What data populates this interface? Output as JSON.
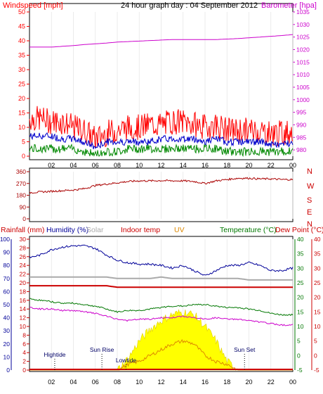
{
  "header": {
    "title": "24 hour graph day : 04 September 2012",
    "left_label": "Windspeed [mph]",
    "right_label": "Barometer [hpa]"
  },
  "colors": {
    "wind_gust": "#ff0000",
    "wind_avg": "#0000cc",
    "wind_low": "#008800",
    "barometer": "#cc00cc",
    "direction": "#aa0000",
    "rainfall": "#cc0000",
    "humidity": "#000099",
    "solar": "#aaaaaa",
    "indoor_temp": "#cc0000",
    "uv": "#dd8800",
    "temperature": "#007700",
    "dew_point": "#cc0000",
    "solar_fill": "#ffff00"
  },
  "x_ticks": [
    "02",
    "04",
    "06",
    "08",
    "10",
    "12",
    "14",
    "16",
    "18",
    "20",
    "22",
    "00"
  ],
  "panel_wind": {
    "left_ticks": [
      "0",
      "5",
      "10",
      "15",
      "20",
      "25",
      "30",
      "35",
      "40",
      "45",
      "50"
    ],
    "right_ticks": [
      "980",
      "985",
      "990",
      "995",
      "1000",
      "1005",
      "1010",
      "1015",
      "1020",
      "1025",
      "1030",
      "1035"
    ]
  },
  "panel_dir": {
    "left_ticks": [
      "0",
      "90",
      "180",
      "270",
      "360"
    ],
    "compass": [
      "N",
      "W",
      "S",
      "E",
      "N"
    ]
  },
  "panel_bottom": {
    "labels": {
      "rainfall": "Rainfall (mm)",
      "humidity": "Humidity (%)",
      "solar": "Solar",
      "indoor": "Indoor temp",
      "uv": "UV",
      "temperature": "Temperature (°C)",
      "dewpoint": "Dew Point (°C)"
    },
    "rain_ticks": [
      "0",
      "2",
      "4",
      "6",
      "8",
      "10",
      "12",
      "14",
      "16",
      "18",
      "20",
      "22",
      "24",
      "26",
      "28",
      "30"
    ],
    "hum_ticks": [
      "0",
      "10",
      "20",
      "30",
      "40",
      "50",
      "60",
      "70",
      "80",
      "90",
      "100"
    ],
    "temp_ticks_outer": [
      "-5",
      "0",
      "5",
      "10",
      "15",
      "20",
      "25",
      "30",
      "35",
      "40"
    ],
    "temp_ticks_inner": [
      "-5",
      "0",
      "5",
      "10",
      "15",
      "20",
      "25",
      "30",
      "35",
      "40"
    ],
    "events": {
      "hightide": "Hightide",
      "sunrise": "Sun Rise",
      "lowtide": "Lowtide",
      "sunset": "Sun Set"
    }
  },
  "chart_data": [
    {
      "type": "line",
      "title": "24 hour graph day : 04 September 2012",
      "ylabel": "Windspeed [mph]",
      "y2label": "Barometer [hpa]",
      "x_hours": [
        0,
        1,
        2,
        3,
        4,
        5,
        6,
        7,
        8,
        9,
        10,
        11,
        12,
        13,
        14,
        15,
        16,
        17,
        18,
        19,
        20,
        21,
        22,
        23,
        24
      ],
      "ylim": [
        0,
        50
      ],
      "y2lim": [
        977.5,
        1035
      ],
      "series": [
        {
          "name": "Windspeed",
          "axis": "y",
          "values": [
            13,
            13,
            12,
            12,
            10,
            9,
            6,
            8,
            9,
            10,
            10,
            11,
            11,
            12,
            12,
            11,
            10,
            11,
            9,
            9,
            9,
            9,
            8,
            8,
            9
          ]
        },
        {
          "name": "avg",
          "axis": "y",
          "values": [
            7,
            7,
            7,
            6,
            6,
            5,
            3,
            5,
            5,
            5,
            5,
            5,
            6,
            6,
            6,
            6,
            5,
            6,
            5,
            5,
            5,
            5,
            4,
            4,
            5
          ]
        },
        {
          "name": "low",
          "axis": "y",
          "values": [
            2,
            2,
            2,
            2,
            2,
            1,
            0,
            1,
            1,
            2,
            2,
            2,
            2,
            2,
            2,
            2,
            2,
            2,
            1,
            1,
            1,
            1,
            1,
            1,
            1
          ]
        },
        {
          "name": "Barometer",
          "axis": "y2",
          "values": [
            1021,
            1021,
            1021,
            1021.3,
            1021.6,
            1022,
            1022.3,
            1022.6,
            1023,
            1023.2,
            1023.4,
            1023.6,
            1023.8,
            1024,
            1024,
            1024,
            1024,
            1024,
            1024.2,
            1024.4,
            1024.7,
            1025,
            1025.3,
            1025.6,
            1026
          ]
        }
      ]
    },
    {
      "type": "line",
      "title": "",
      "ylabel": "",
      "x_hours": [
        0,
        1,
        2,
        3,
        4,
        5,
        6,
        7,
        8,
        9,
        10,
        11,
        12,
        13,
        14,
        15,
        16,
        17,
        18,
        19,
        20,
        21,
        22,
        23,
        24
      ],
      "ylim": [
        0,
        360
      ],
      "series": [
        {
          "name": "Wind direction",
          "values": [
            200,
            205,
            210,
            215,
            220,
            230,
            255,
            265,
            275,
            285,
            290,
            290,
            292,
            290,
            290,
            285,
            270,
            290,
            300,
            310,
            310,
            305,
            305,
            300,
            300
          ]
        }
      ]
    },
    {
      "type": "line",
      "title": "",
      "x_hours": [
        0,
        1,
        2,
        3,
        4,
        5,
        6,
        7,
        8,
        9,
        10,
        11,
        12,
        13,
        14,
        15,
        16,
        17,
        18,
        19,
        20,
        21,
        22,
        23,
        24
      ],
      "rain_lim": [
        0,
        30
      ],
      "humidity_lim": [
        0,
        100
      ],
      "temp_lim": [
        -5,
        40
      ],
      "series": [
        {
          "name": "Rainfall (mm)",
          "axis": "rain",
          "values": [
            0,
            0,
            0,
            0,
            0,
            0,
            0,
            0,
            0,
            0,
            0,
            0,
            0,
            0,
            0,
            0,
            0,
            0,
            0,
            0,
            0,
            0,
            0,
            0,
            0
          ]
        },
        {
          "name": "Humidity (%)",
          "axis": "humidity",
          "values": [
            86,
            88,
            92,
            94,
            95,
            95,
            93,
            88,
            84,
            82,
            81,
            81,
            80,
            78,
            80,
            76,
            72,
            76,
            80,
            80,
            82,
            80,
            76,
            76,
            78
          ]
        },
        {
          "name": "Solar",
          "axis": "temp",
          "values": [
            27,
            27,
            27,
            27,
            27,
            27,
            27,
            27,
            26.5,
            26.5,
            26.5,
            26.5,
            27,
            26.5,
            26.5,
            26.5,
            26.5,
            26.5,
            26.5,
            26.5,
            26,
            26,
            26,
            26,
            26
          ]
        },
        {
          "name": "Indoor temp",
          "axis": "temp",
          "values": [
            24,
            24,
            24,
            24,
            24,
            24,
            24,
            24,
            23.5,
            23.5,
            23.5,
            23.5,
            23.5,
            23.5,
            23.5,
            23.5,
            23.5,
            23.5,
            23.5,
            23.5,
            23.5,
            23.5,
            23.5,
            23.5,
            23.5
          ]
        },
        {
          "name": "Temperature (°C)",
          "axis": "temp",
          "values": [
            19.5,
            19,
            18.5,
            18,
            18,
            17.5,
            17,
            16,
            15,
            15.5,
            15.5,
            16,
            16.5,
            17,
            17,
            17.5,
            17.5,
            17,
            16.5,
            16.5,
            16,
            15.5,
            14.5,
            14,
            14
          ]
        },
        {
          "name": "Dew Point (°C)",
          "axis": "temp",
          "values": [
            16.5,
            16,
            16,
            15.5,
            15.5,
            15,
            14.5,
            13.5,
            12.5,
            12,
            12.5,
            12.5,
            13,
            13,
            13.5,
            13,
            12.5,
            13,
            12.5,
            12.5,
            12,
            11.5,
            11,
            10.5,
            10.5
          ]
        },
        {
          "name": "UV",
          "axis": "temp",
          "values": [
            -5,
            -5,
            -5,
            -5,
            -5,
            -5,
            -5,
            -5,
            -5,
            -3,
            -2,
            0,
            2,
            4,
            5,
            4,
            0,
            -2,
            -3,
            -5,
            -5,
            -5,
            -5,
            -5,
            -5
          ]
        },
        {
          "name": "Solar radiation",
          "axis": "temp",
          "values": [
            -5,
            -5,
            -5,
            -5,
            -5,
            -5,
            -5,
            -5,
            -5,
            -1,
            5,
            9,
            12,
            14,
            15,
            14,
            10,
            5,
            -2,
            -5,
            -5,
            -5,
            -5,
            -5,
            -5
          ]
        }
      ],
      "events": [
        {
          "label": "Hightide",
          "hour": 2.3
        },
        {
          "label": "Sun Rise",
          "hour": 6.6
        },
        {
          "label": "Lowtide",
          "hour": 8.8
        },
        {
          "label": "Sun Set",
          "hour": 19.6
        }
      ]
    }
  ]
}
